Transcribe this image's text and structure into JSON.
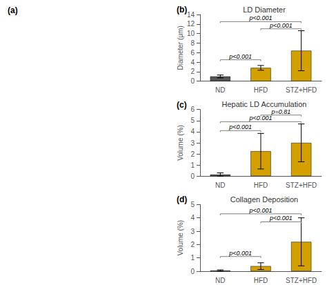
{
  "chart_data": [
    {
      "type": "bar",
      "panel_label": "(b)",
      "title": "LD Diameter",
      "ylabel": "Diameter (μm)",
      "categories": [
        "ND",
        "HFD",
        "STZ+HFD"
      ],
      "values": [
        1.0,
        2.8,
        6.4
      ],
      "errors": [
        0.3,
        0.5,
        4.2
      ],
      "colors": [
        "#555555",
        "#D4A000",
        "#D4A000"
      ],
      "ylim": [
        0,
        14
      ],
      "yticks": [
        0,
        2,
        4,
        6,
        8,
        10,
        12,
        14
      ],
      "grid": false,
      "significance": [
        {
          "from": "ND",
          "to": "HFD",
          "y": 4.5,
          "text": "p<0.001"
        },
        {
          "from": "ND",
          "to": "STZ+HFD",
          "y": 12.5,
          "text": "p<0.001"
        },
        {
          "from": "HFD",
          "to": "STZ+HFD",
          "y": 11.0,
          "text": "p<0.001"
        }
      ]
    },
    {
      "type": "bar",
      "panel_label": "(c)",
      "title": "Hepatic LD Accumulation",
      "ylabel": "Volume (%)",
      "categories": [
        "ND",
        "HFD",
        "STZ+HFD"
      ],
      "values": [
        0.15,
        2.25,
        3.0
      ],
      "errors": [
        0.15,
        1.6,
        1.7
      ],
      "colors": [
        "#555555",
        "#D4A000",
        "#D4A000"
      ],
      "ylim": [
        0,
        6
      ],
      "yticks": [
        0,
        1,
        2,
        3,
        4,
        5,
        6
      ],
      "grid": false,
      "significance": [
        {
          "from": "ND",
          "to": "HFD",
          "y": 4.1,
          "text": "p<0.001"
        },
        {
          "from": "ND",
          "to": "STZ+HFD",
          "y": 4.9,
          "text": "p<0.001"
        },
        {
          "from": "HFD",
          "to": "STZ+HFD",
          "y": 5.5,
          "text": "p=0.81"
        }
      ]
    },
    {
      "type": "bar",
      "panel_label": "(d)",
      "title": "Collagen Deposition",
      "ylabel": "Volume (%)",
      "categories": [
        "ND",
        "HFD",
        "STZ+HFD"
      ],
      "values": [
        0.05,
        0.38,
        2.2
      ],
      "errors": [
        0.05,
        0.25,
        1.8
      ],
      "colors": [
        "#555555",
        "#D4A000",
        "#D4A000"
      ],
      "ylim": [
        0,
        5
      ],
      "yticks": [
        0,
        1,
        2,
        3,
        4,
        5
      ],
      "grid": false,
      "significance": [
        {
          "from": "ND",
          "to": "HFD",
          "y": 1.1,
          "text": "p<0.001"
        },
        {
          "from": "ND",
          "to": "STZ+HFD",
          "y": 4.3,
          "text": "p<0.001"
        },
        {
          "from": "HFD",
          "to": "STZ+HFD",
          "y": 3.7,
          "text": "p<0.001"
        }
      ]
    }
  ],
  "annotations": [
    {
      "text": "(a)"
    }
  ]
}
